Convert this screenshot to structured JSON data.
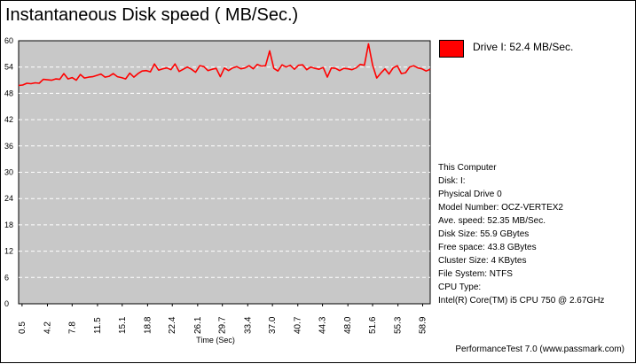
{
  "chart_data": {
    "type": "line",
    "title": "Instantaneous Disk speed ( MB/Sec.)",
    "xlabel": "Time (Sec)",
    "ylabel": "",
    "ylim": [
      0,
      60
    ],
    "y_ticks": [
      "0",
      "6",
      "12",
      "18",
      "24",
      "30",
      "36",
      "42",
      "48",
      "54",
      "60"
    ],
    "x_ticks": [
      "0.5",
      "4.2",
      "7.8",
      "11.5",
      "15.1",
      "18.8",
      "22.4",
      "26.1",
      "29.7",
      "33.4",
      "37.0",
      "40.7",
      "44.3",
      "48.0",
      "51.6",
      "55.3",
      "58.9"
    ],
    "grid": true,
    "plot_background": "#c8c8c8",
    "series": [
      {
        "name": "Drive I: 52.4 MB/Sec.",
        "color": "#ff0000",
        "x": [
          0.0,
          0.6,
          1.2,
          1.8,
          2.4,
          3.0,
          3.6,
          4.2,
          4.8,
          5.4,
          6.0,
          6.6,
          7.2,
          7.8,
          8.4,
          9.0,
          9.6,
          10.2,
          10.8,
          11.4,
          12.0,
          12.6,
          13.2,
          13.8,
          14.4,
          15.0,
          15.6,
          16.2,
          16.8,
          17.4,
          18.0,
          18.6,
          19.2,
          19.8,
          20.4,
          21.0,
          21.6,
          22.2,
          22.8,
          23.4,
          24.0,
          24.6,
          25.2,
          25.8,
          26.4,
          27.0,
          27.6,
          28.2,
          28.8,
          29.4,
          30.0,
          30.6,
          31.2,
          31.8,
          32.4,
          33.0,
          33.6,
          34.2,
          34.8,
          35.4,
          36.0,
          36.6,
          37.2,
          37.8,
          38.4,
          39.0,
          39.6,
          40.2,
          40.8,
          41.4,
          42.0,
          42.6,
          43.2,
          43.8,
          44.4,
          45.0,
          45.6,
          46.2,
          46.8,
          47.4,
          48.0,
          48.6,
          49.2,
          49.8,
          50.4,
          51.0,
          51.6,
          52.2,
          52.8,
          53.4,
          54.0,
          54.6,
          55.2,
          55.8,
          56.4,
          57.0,
          57.6,
          58.2,
          58.8,
          59.4,
          60.0
        ],
        "values": [
          49.8,
          49.9,
          50.3,
          50.2,
          50.4,
          50.3,
          51.2,
          51.1,
          51.0,
          51.3,
          51.2,
          52.5,
          51.3,
          51.6,
          51.0,
          52.3,
          51.5,
          51.7,
          51.8,
          52.1,
          52.4,
          51.7,
          51.9,
          52.5,
          51.8,
          51.6,
          51.3,
          52.6,
          51.7,
          52.5,
          53.1,
          53.2,
          52.9,
          54.7,
          53.3,
          53.6,
          53.8,
          53.4,
          54.7,
          53.0,
          53.5,
          54.0,
          53.5,
          52.8,
          54.3,
          54.1,
          53.2,
          53.5,
          53.7,
          51.8,
          53.8,
          53.2,
          53.8,
          54.1,
          53.6,
          53.8,
          54.3,
          53.6,
          54.6,
          54.2,
          54.3,
          57.7,
          53.7,
          53.1,
          54.5,
          54.0,
          54.4,
          53.5,
          54.4,
          54.5,
          53.4,
          54.0,
          53.7,
          53.5,
          53.9,
          51.7,
          53.8,
          53.7,
          53.2,
          53.7,
          53.6,
          53.4,
          53.8,
          54.6,
          54.4,
          59.3,
          54.5,
          51.5,
          52.6,
          53.6,
          52.4,
          53.8,
          54.3,
          52.5,
          52.7,
          54.0,
          54.3,
          53.8,
          53.6,
          53.1,
          53.5
        ]
      }
    ]
  },
  "legend": {
    "label": "Drive I: 52.4 MB/Sec.",
    "color": "#ff0000"
  },
  "info": {
    "lines": [
      "This Computer",
      "Disk: I:",
      "Physical Drive 0",
      "Model Number: OCZ-VERTEX2",
      "Ave. speed: 52.35 MB/Sec.",
      "Disk Size: 55.9 GBytes",
      "Free space: 43.8 GBytes",
      "Cluster Size: 4 KBytes",
      "File System: NTFS",
      "CPU Type:",
      "Intel(R) Core(TM) i5 CPU 750 @ 2.67GHz"
    ]
  },
  "footer": "PerformanceTest 7.0 (www.passmark.com)"
}
